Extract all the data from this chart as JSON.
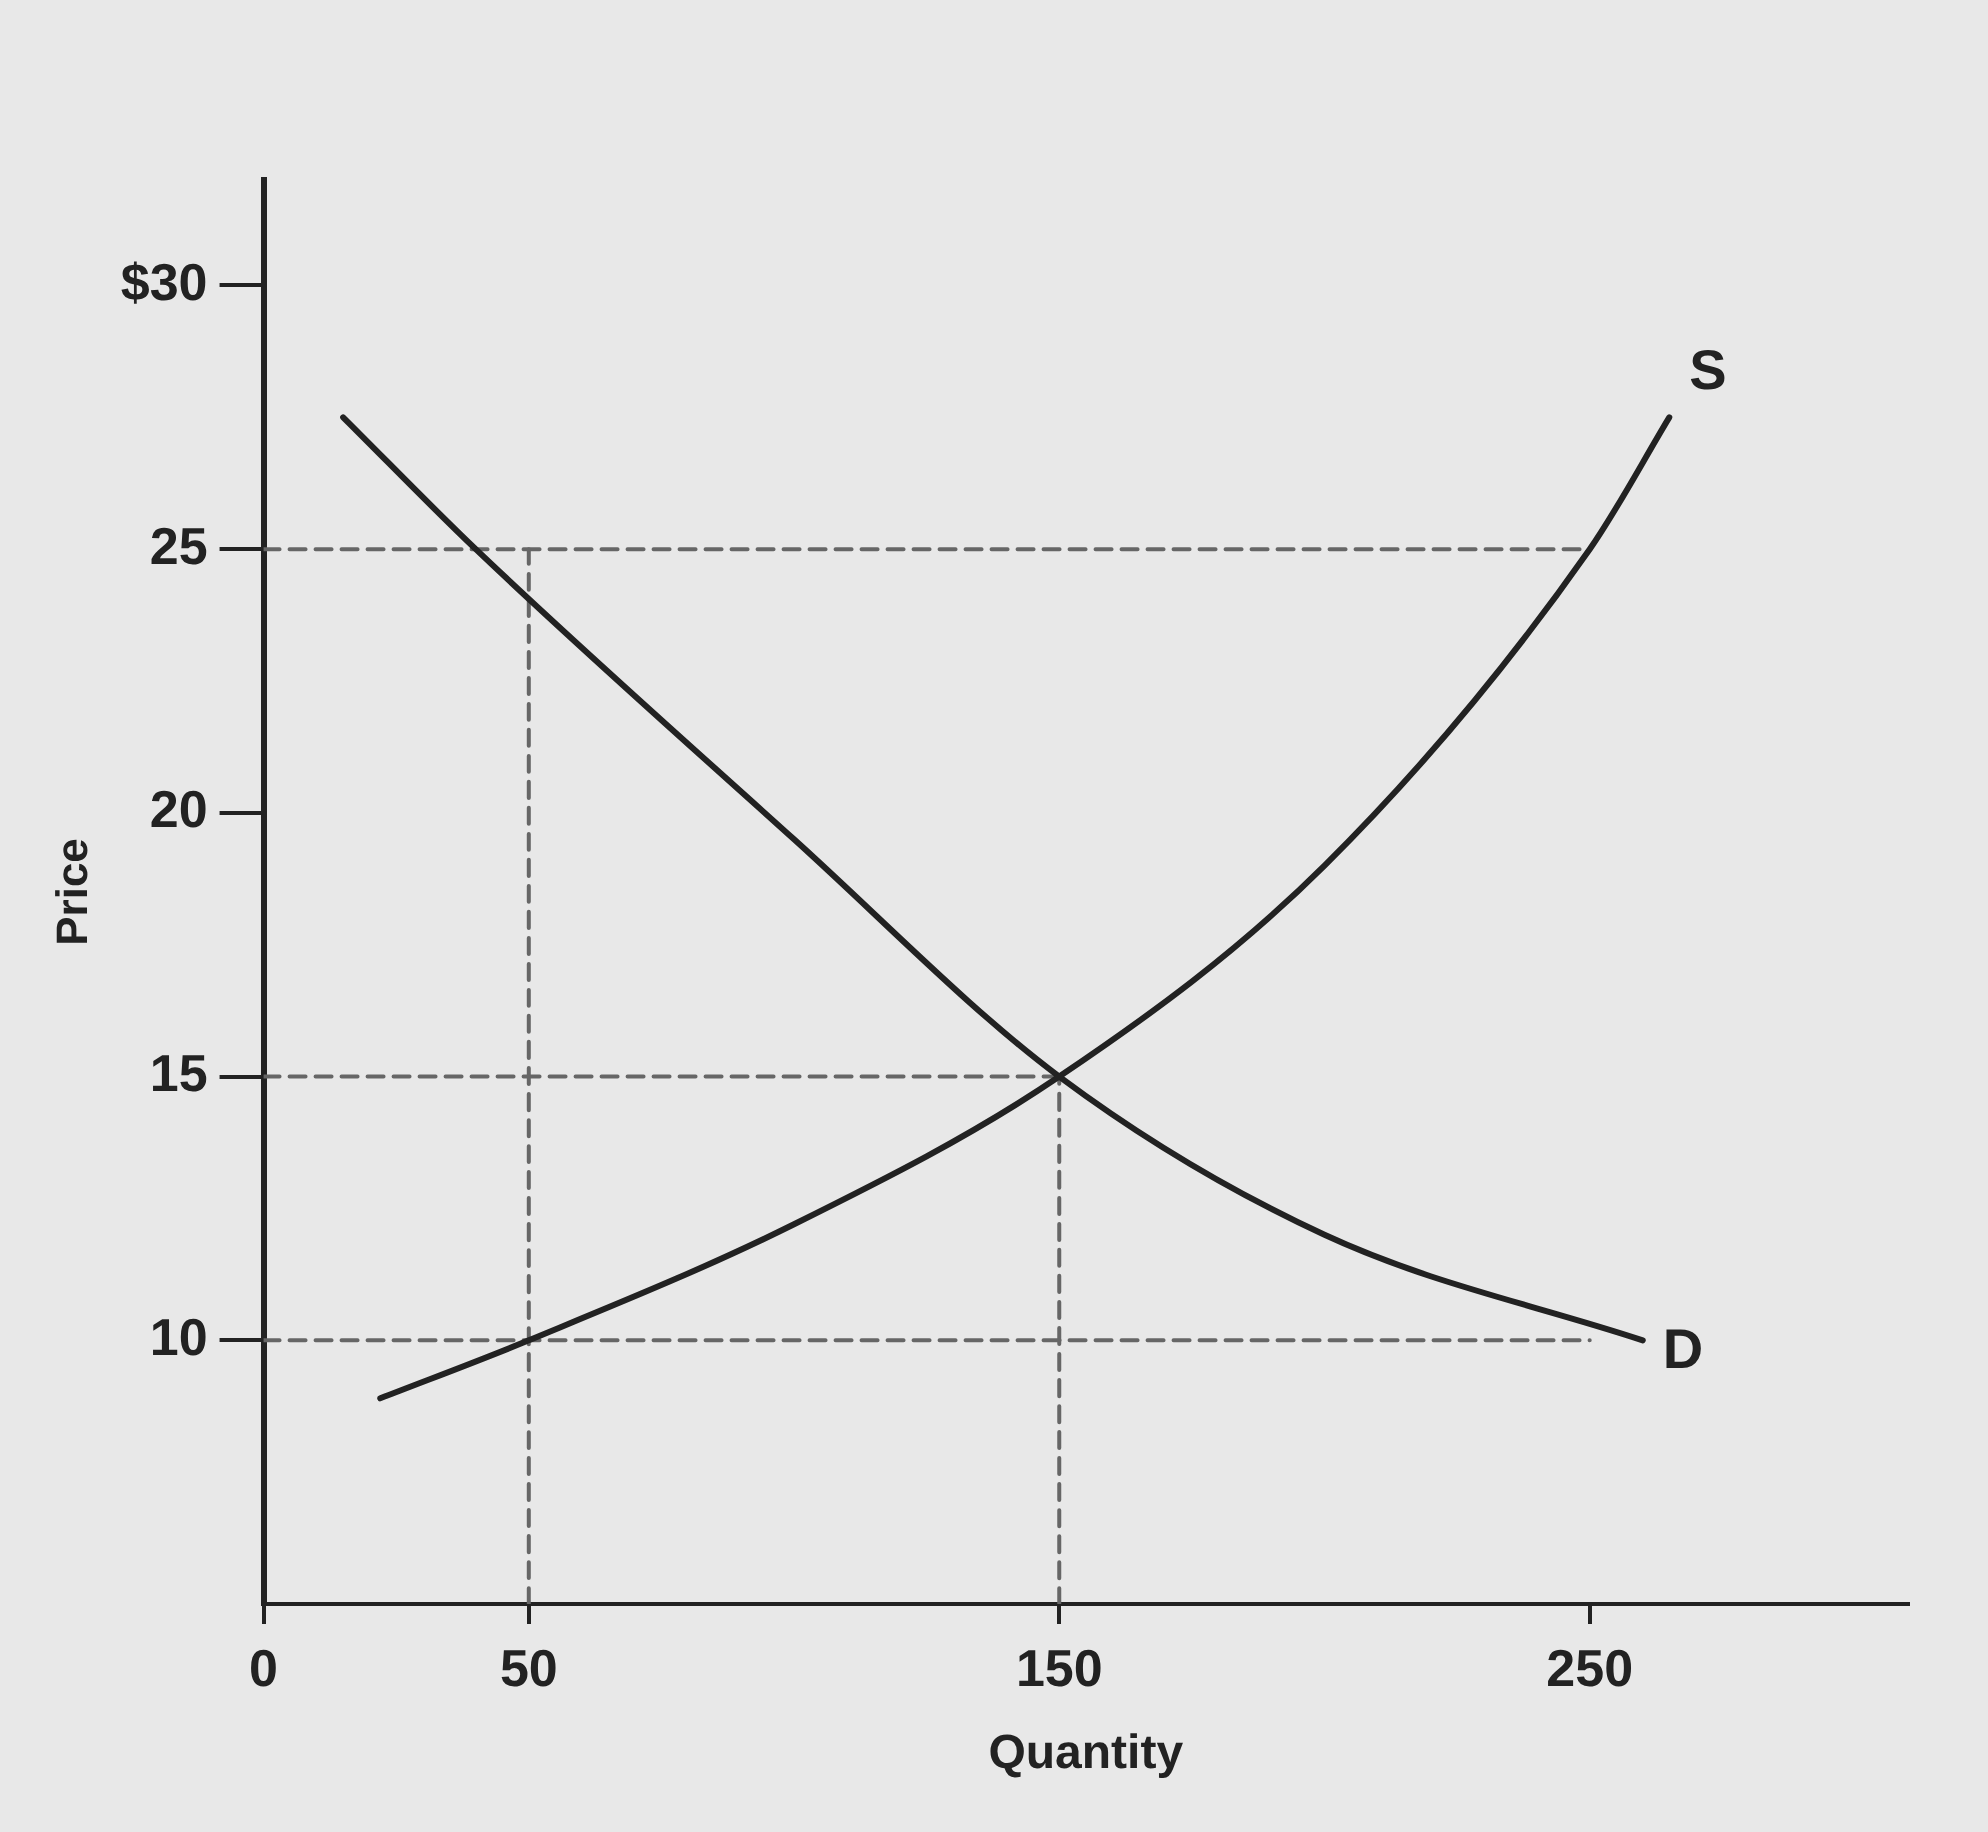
{
  "chart_data": {
    "type": "line",
    "xlabel": "Quantity",
    "ylabel": "Price",
    "xlim": [
      0,
      310
    ],
    "ylim": [
      5,
      32
    ],
    "xticks": [
      0,
      50,
      150,
      250
    ],
    "yticks": [
      10,
      15,
      20,
      {
        "value": 30,
        "label": "$30"
      },
      25
    ],
    "grid": false,
    "legend": false,
    "marker": "none",
    "series": [
      {
        "name": "S",
        "color": "#222222",
        "line_style": "solid",
        "x": [
          22,
          50,
          100,
          150,
          200,
          250,
          265
        ],
        "values": [
          8.9,
          10,
          12.2,
          15,
          19,
          25,
          27.5
        ]
      },
      {
        "name": "D",
        "color": "#222222",
        "line_style": "solid",
        "x": [
          15,
          40,
          100,
          150,
          200,
          260
        ],
        "values": [
          27.5,
          25,
          19.5,
          15,
          12,
          10
        ]
      },
      {
        "color": "#666666",
        "line_style": "dashed",
        "x": [
          0,
          250
        ],
        "values": [
          25,
          25
        ]
      },
      {
        "color": "#666666",
        "line_style": "dashed",
        "x": [
          0,
          150
        ],
        "values": [
          15,
          15
        ]
      },
      {
        "color": "#666666",
        "line_style": "dashed",
        "x": [
          0,
          250
        ],
        "values": [
          10,
          10
        ]
      },
      {
        "color": "#666666",
        "line_style": "dashed",
        "x": [
          50,
          50
        ],
        "values": [
          5,
          25
        ]
      },
      {
        "color": "#666666",
        "line_style": "dashed",
        "x": [
          150,
          150
        ],
        "values": [
          5,
          15
        ]
      }
    ]
  }
}
